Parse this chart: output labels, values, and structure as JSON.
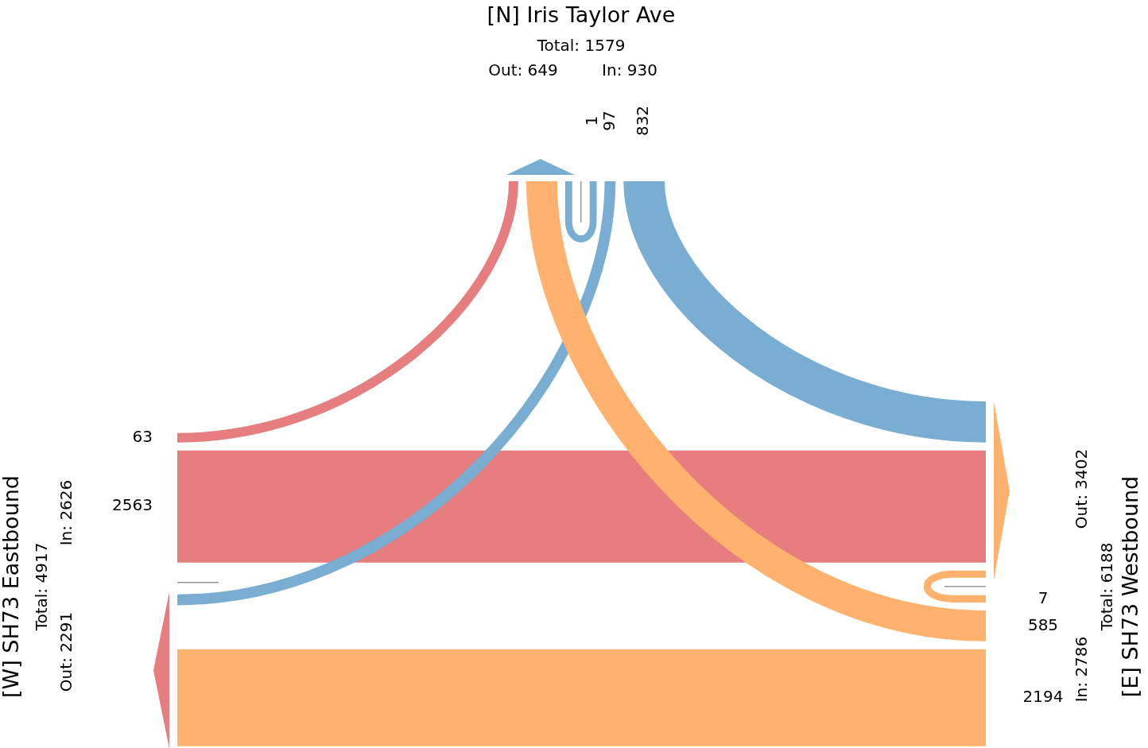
{
  "chart_data": {
    "type": "other",
    "categories": [
      "[N] Iris Taylor Ave",
      "[W] SH73 Eastbound",
      "[E] SH73 Westbound"
    ],
    "series": [
      {
        "colors": [
          "#79add2",
          "#e67d7e",
          "#ffb26e"
        ],
        "values": [
          1,
          63,
          585
        ]
      },
      {
        "colors": [
          "#79add2",
          "#e67d7e",
          "#ffb26e"
        ],
        "values": [
          97,
          null,
          2194
        ]
      },
      {
        "colors": [
          "#79add2",
          "#e67d7e",
          "#ffb26e"
        ],
        "values": [
          832,
          2563,
          7
        ]
      }
    ],
    "annotations": [
      "Total: 1579",
      "Out: 649",
      "In: 930",
      "Total: 4917",
      "Out: 2291",
      "In: 2626",
      "Total: 6188",
      "Out: 3402",
      "In: 2786"
    ],
    "data_labels": true
  }
}
